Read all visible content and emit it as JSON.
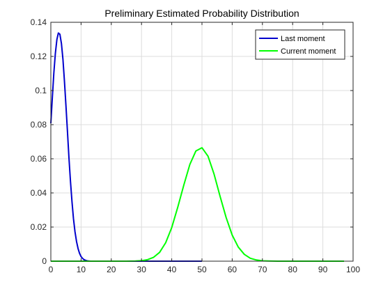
{
  "chart_data": {
    "type": "line",
    "title": "Preliminary Estimated Probability Distribution",
    "xlabel": "",
    "ylabel": "",
    "xlim": [
      0,
      100
    ],
    "ylim": [
      0,
      0.14
    ],
    "xticks": [
      0,
      10,
      20,
      30,
      40,
      50,
      60,
      70,
      80,
      90,
      100
    ],
    "yticks": [
      0,
      0.02,
      0.04,
      0.06,
      0.08,
      0.1,
      0.12,
      0.14
    ],
    "xtick_labels": [
      "0",
      "10",
      "20",
      "30",
      "40",
      "50",
      "60",
      "70",
      "80",
      "90",
      "100"
    ],
    "ytick_labels": [
      "0",
      "0.02",
      "0.04",
      "0.06",
      "0.08",
      "0.1",
      "0.12",
      "0.14"
    ],
    "grid": true,
    "legend_position": "top-right",
    "series": [
      {
        "name": "Last moment",
        "color": "#0000cc",
        "x": [
          0,
          0.5,
          1,
          1.5,
          2,
          2.5,
          3,
          3.5,
          4,
          4.5,
          5,
          5.5,
          6,
          6.5,
          7,
          7.5,
          8,
          8.5,
          9,
          9.5,
          10,
          10.5,
          11,
          11.5,
          12,
          12.5,
          13,
          14,
          15,
          16,
          18,
          20,
          25,
          30,
          35,
          40,
          45,
          50
        ],
        "y": [
          0.0808,
          0.0962,
          0.1102,
          0.1218,
          0.1299,
          0.1337,
          0.133,
          0.1276,
          0.1182,
          0.1057,
          0.0911,
          0.0757,
          0.0606,
          0.0467,
          0.0347,
          0.0249,
          0.0172,
          0.0115,
          0.0074,
          0.0046,
          0.0027,
          0.0016,
          0.0009,
          0.0005,
          0.0002,
          0.0001,
          5e-05,
          1e-05,
          0,
          0,
          0,
          0,
          0,
          0,
          0,
          0,
          0,
          0
        ]
      },
      {
        "name": "Current moment",
        "color": "#00ff00",
        "x": [
          0,
          10,
          20,
          25,
          28,
          30,
          32,
          34,
          36,
          38,
          40,
          42,
          44,
          46,
          48,
          50,
          52,
          54,
          56,
          58,
          60,
          62,
          64,
          66,
          68,
          70,
          72,
          75,
          80,
          90,
          97
        ],
        "y": [
          0,
          0,
          0,
          2e-05,
          0.0001,
          0.0003,
          0.0009,
          0.0023,
          0.0052,
          0.0108,
          0.0197,
          0.0317,
          0.0447,
          0.0567,
          0.0646,
          0.0665,
          0.0615,
          0.051,
          0.038,
          0.0256,
          0.0153,
          0.0083,
          0.004,
          0.0017,
          0.0007,
          0.0002,
          7e-05,
          1e-05,
          0,
          0,
          0
        ]
      }
    ]
  }
}
